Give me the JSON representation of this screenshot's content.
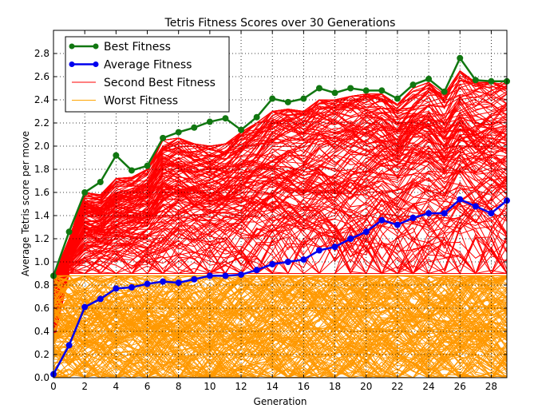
{
  "chart_data": {
    "type": "line",
    "title": "Tetris Fitness Scores over 30 Generations",
    "xlabel": "Generation",
    "ylabel": "Average Tetris score per move",
    "xlim": [
      0,
      29
    ],
    "ylim": [
      0,
      3.0
    ],
    "xticks": [
      0,
      2,
      4,
      6,
      8,
      10,
      12,
      14,
      16,
      18,
      20,
      22,
      24,
      26,
      28
    ],
    "yticks": [
      0.0,
      0.2,
      0.4,
      0.6,
      0.8,
      1.0,
      1.2,
      1.4,
      1.6,
      1.8,
      2.0,
      2.2,
      2.4,
      2.6,
      2.8
    ],
    "grid": true,
    "legend_position": "top-left",
    "x": [
      0,
      1,
      2,
      3,
      4,
      5,
      6,
      7,
      8,
      9,
      10,
      11,
      12,
      13,
      14,
      15,
      16,
      17,
      18,
      19,
      20,
      21,
      22,
      23,
      24,
      25,
      26,
      27,
      28,
      29
    ],
    "series": [
      {
        "name": "Best Fitness",
        "color": "#117711",
        "marker": "circle",
        "values": [
          0.88,
          1.26,
          1.6,
          1.69,
          1.92,
          1.79,
          1.83,
          2.07,
          2.12,
          2.16,
          2.21,
          2.24,
          2.14,
          2.25,
          2.41,
          2.38,
          2.41,
          2.5,
          2.46,
          2.5,
          2.48,
          2.48,
          2.41,
          2.53,
          2.58,
          2.47,
          2.76,
          2.57,
          2.56,
          2.56
        ]
      },
      {
        "name": "Average Fitness",
        "color": "#0000ee",
        "marker": "circle",
        "values": [
          0.03,
          0.28,
          0.61,
          0.68,
          0.77,
          0.78,
          0.81,
          0.83,
          0.82,
          0.85,
          0.88,
          0.88,
          0.89,
          0.93,
          0.98,
          1.0,
          1.02,
          1.1,
          1.13,
          1.2,
          1.26,
          1.36,
          1.32,
          1.38,
          1.42,
          1.42,
          1.54,
          1.48,
          1.42,
          1.53
        ]
      },
      {
        "name": "Second Best Fitness",
        "color": "#ff0000",
        "marker": "none",
        "values": [
          0.88,
          1.2,
          1.6,
          1.58,
          1.72,
          1.73,
          1.8,
          2.05,
          2.07,
          2.02,
          2.0,
          2.02,
          2.12,
          2.2,
          2.3,
          2.32,
          2.3,
          2.4,
          2.4,
          2.43,
          2.45,
          2.45,
          2.36,
          2.5,
          2.55,
          2.45,
          2.65,
          2.55,
          2.55,
          2.57
        ]
      },
      {
        "name": "Worst Fitness",
        "color": "#ffa500",
        "marker": "none",
        "values": [
          0.0,
          0.0,
          0.0,
          0.0,
          0.0,
          0.0,
          0.0,
          0.0,
          0.0,
          0.0,
          0.0,
          0.0,
          0.0,
          0.0,
          0.0,
          0.0,
          0.0,
          0.0,
          0.0,
          0.0,
          0.0,
          0.0,
          0.0,
          0.0,
          0.0,
          0.0,
          0.0,
          0.0,
          0.0,
          0.0
        ]
      }
    ]
  }
}
